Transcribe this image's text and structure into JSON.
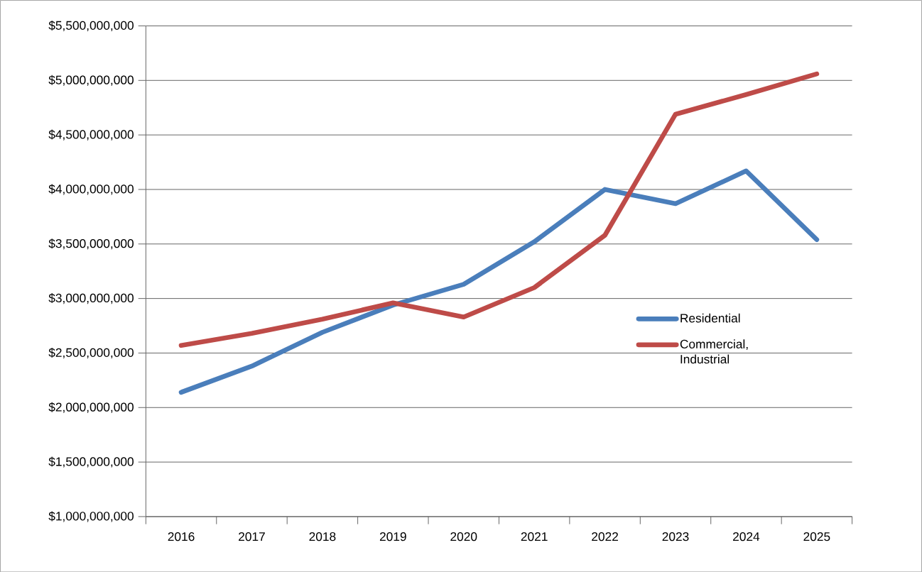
{
  "chart_data": {
    "type": "line",
    "categories": [
      "2016",
      "2017",
      "2018",
      "2019",
      "2020",
      "2021",
      "2022",
      "2023",
      "2024",
      "2025"
    ],
    "series": [
      {
        "name": "Residential",
        "color": "#4a7ebb",
        "values": [
          2140000000,
          2380000000,
          2690000000,
          2940000000,
          3130000000,
          3520000000,
          4000000000,
          3870000000,
          4170000000,
          3540000000
        ]
      },
      {
        "name": "Commercial, Industrial",
        "color": "#be4b48",
        "values": [
          2570000000,
          2680000000,
          2810000000,
          2960000000,
          2830000000,
          3100000000,
          3580000000,
          4690000000,
          4870000000,
          5060000000
        ]
      }
    ],
    "ylim": [
      1000000000,
      5500000000
    ],
    "yticks": [
      {
        "value": 1000000000,
        "label": "$1,000,000,000"
      },
      {
        "value": 1500000000,
        "label": "$1,500,000,000"
      },
      {
        "value": 2000000000,
        "label": "$2,000,000,000"
      },
      {
        "value": 2500000000,
        "label": "$2,500,000,000"
      },
      {
        "value": 3000000000,
        "label": "$3,000,000,000"
      },
      {
        "value": 3500000000,
        "label": "$3,500,000,000"
      },
      {
        "value": 4000000000,
        "label": "$4,000,000,000"
      },
      {
        "value": 4500000000,
        "label": "$4,500,000,000"
      },
      {
        "value": 5000000000,
        "label": "$5,000,000,000"
      },
      {
        "value": 5500000000,
        "label": "$5,500,000,000"
      }
    ],
    "grid": "y",
    "legend": "right",
    "marker": "none",
    "line_style": "solid"
  }
}
